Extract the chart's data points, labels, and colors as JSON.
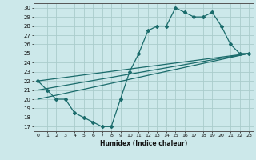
{
  "xlabel": "Humidex (Indice chaleur)",
  "ylabel": "",
  "background_color": "#cce8ea",
  "grid_color": "#aacccc",
  "line_color": "#1a6b6b",
  "xlim": [
    -0.5,
    23.5
  ],
  "ylim": [
    16.5,
    30.5
  ],
  "xticks": [
    0,
    1,
    2,
    3,
    4,
    5,
    6,
    7,
    8,
    9,
    10,
    11,
    12,
    13,
    14,
    15,
    16,
    17,
    18,
    19,
    20,
    21,
    22,
    23
  ],
  "yticks": [
    17,
    18,
    19,
    20,
    21,
    22,
    23,
    24,
    25,
    26,
    27,
    28,
    29,
    30
  ],
  "line1_x": [
    0,
    1,
    2,
    3,
    4,
    5,
    6,
    7,
    8,
    9,
    10,
    11,
    12,
    13,
    14,
    15,
    16,
    17,
    18,
    19,
    20,
    21,
    22,
    23
  ],
  "line1_y": [
    22,
    21,
    20,
    20,
    18.5,
    18,
    17.5,
    17,
    17,
    20,
    23,
    25,
    27.5,
    28,
    28,
    30,
    29.5,
    29,
    29,
    29.5,
    28,
    26,
    25,
    25
  ],
  "line2_x": [
    0,
    23
  ],
  "line2_y": [
    22,
    25
  ],
  "line3_x": [
    0,
    23
  ],
  "line3_y": [
    21,
    25
  ],
  "line4_x": [
    0,
    23
  ],
  "line4_y": [
    20,
    25
  ]
}
